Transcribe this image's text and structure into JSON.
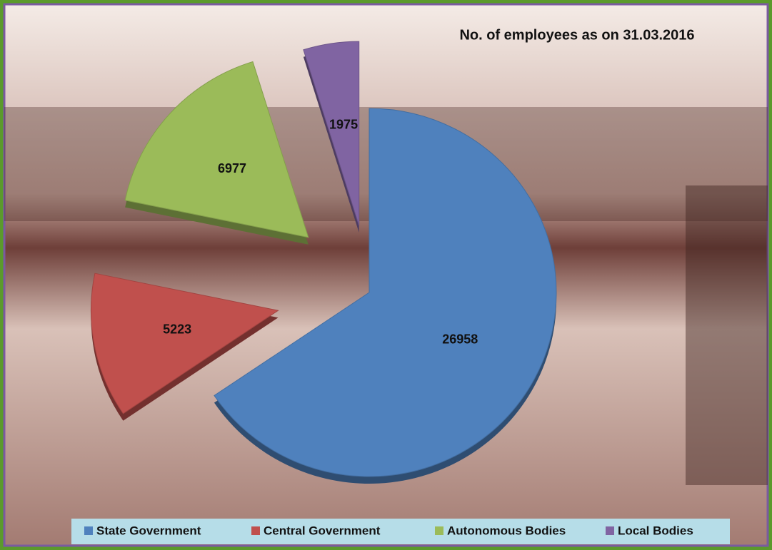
{
  "chart_data": {
    "type": "pie",
    "title": "No. of employees as on 31.03.2016",
    "categories": [
      "State Government",
      "Central Government",
      "Autonomous Bodies",
      "Local Bodies"
    ],
    "values": [
      26958,
      5223,
      6977,
      1975
    ],
    "colors": [
      "#4f81bd",
      "#c0504d",
      "#9bbb59",
      "#8064a2"
    ],
    "legend": "bottom"
  }
}
